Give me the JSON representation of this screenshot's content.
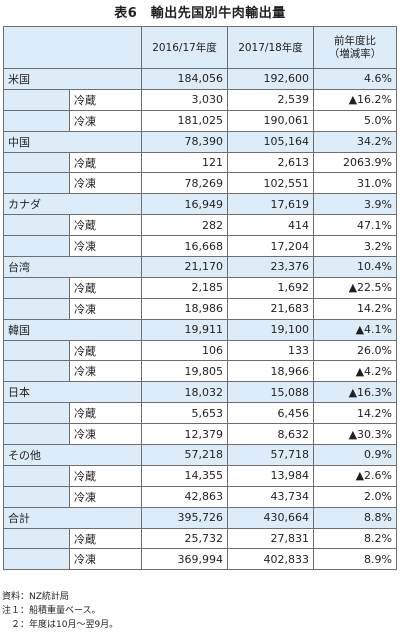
{
  "title": "表6　輸出先国別牛肉輸出量",
  "header": {
    "col1": "2016/17年度",
    "col2": "2017/18年度",
    "col3_line1": "前年度比",
    "col3_line2": "（増減率）"
  },
  "groups": [
    {
      "name": "米国",
      "total": [
        "184,056",
        "192,600",
        "4.6%"
      ],
      "subs": [
        {
          "label": "冷蔵",
          "values": [
            "3,030",
            "2,539",
            "▲16.2%"
          ]
        },
        {
          "label": "冷凍",
          "values": [
            "181,025",
            "190,061",
            "5.0%"
          ]
        }
      ]
    },
    {
      "name": "中国",
      "total": [
        "78,390",
        "105,164",
        "34.2%"
      ],
      "subs": [
        {
          "label": "冷蔵",
          "values": [
            "121",
            "2,613",
            "2063.9%"
          ]
        },
        {
          "label": "冷凍",
          "values": [
            "78,269",
            "102,551",
            "31.0%"
          ]
        }
      ]
    },
    {
      "name": "カナダ",
      "total": [
        "16,949",
        "17,619",
        "3.9%"
      ],
      "subs": [
        {
          "label": "冷蔵",
          "values": [
            "282",
            "414",
            "47.1%"
          ]
        },
        {
          "label": "冷凍",
          "values": [
            "16,668",
            "17,204",
            "3.2%"
          ]
        }
      ]
    },
    {
      "name": "台湾",
      "total": [
        "21,170",
        "23,376",
        "10.4%"
      ],
      "subs": [
        {
          "label": "冷蔵",
          "values": [
            "2,185",
            "1,692",
            "▲22.5%"
          ]
        },
        {
          "label": "冷凍",
          "values": [
            "18,986",
            "21,683",
            "14.2%"
          ]
        }
      ]
    },
    {
      "name": "韓国",
      "total": [
        "19,911",
        "19,100",
        "▲4.1%"
      ],
      "subs": [
        {
          "label": "冷蔵",
          "values": [
            "106",
            "133",
            "26.0%"
          ]
        },
        {
          "label": "冷凍",
          "values": [
            "19,805",
            "18,966",
            "▲4.2%"
          ]
        }
      ]
    },
    {
      "name": "日本",
      "total": [
        "18,032",
        "15,088",
        "▲16.3%"
      ],
      "subs": [
        {
          "label": "冷蔵",
          "values": [
            "5,653",
            "6,456",
            "14.2%"
          ]
        },
        {
          "label": "冷凍",
          "values": [
            "12,379",
            "8,632",
            "▲30.3%"
          ]
        }
      ]
    },
    {
      "name": "その他",
      "total": [
        "57,218",
        "57,718",
        "0.9%"
      ],
      "subs": [
        {
          "label": "冷蔵",
          "values": [
            "14,355",
            "13,984",
            "▲2.6%"
          ]
        },
        {
          "label": "冷凍",
          "values": [
            "42,863",
            "43,734",
            "2.0%"
          ]
        }
      ]
    },
    {
      "name": "合計",
      "total": [
        "395,726",
        "430,664",
        "8.8%"
      ],
      "subs": [
        {
          "label": "冷蔵",
          "values": [
            "25,732",
            "27,831",
            "8.2%"
          ]
        },
        {
          "label": "冷凍",
          "values": [
            "369,994",
            "402,833",
            "8.9%"
          ]
        }
      ]
    }
  ],
  "notes": [
    "資料：NZ統計局",
    "注１：船積重量ベース。",
    "　２：年度は10月～翌9月。"
  ]
}
